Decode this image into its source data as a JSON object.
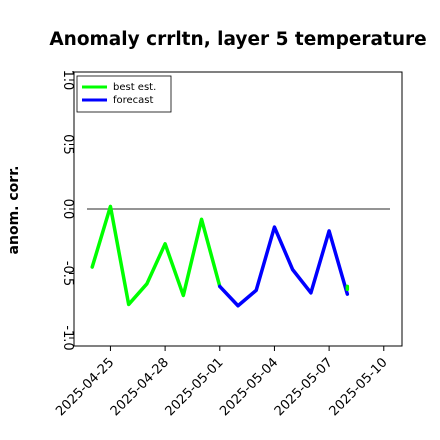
{
  "chart_data": {
    "type": "line",
    "title": "Anomaly crrltn, layer 5 temperature",
    "ylabel": "anom. corr.",
    "xlabel": "",
    "ylim": [
      -1.05,
      1.05
    ],
    "yticks": [
      -1.0,
      -0.5,
      0.0,
      0.5,
      1.0
    ],
    "ytick_labels": [
      "-1.0",
      "-0.5",
      "0.0",
      "0.5",
      "1.0"
    ],
    "xlim": [
      "2025-04-23T00:00",
      "2025-05-11T00:00"
    ],
    "xticks": [
      "2025-04-25",
      "2025-04-28",
      "2025-05-01",
      "2025-05-04",
      "2025-05-07",
      "2025-05-10"
    ],
    "xtick_labels": [
      "2025-04-25",
      "2025-04-28",
      "2025-05-01",
      "2025-05-04",
      "2025-05-07",
      "2025-05-10"
    ],
    "highlighted_xtick": "2025-05-01",
    "highlight_color": "#1a8a1a",
    "reference_line_y": 0.0,
    "legend_position": "upper-left",
    "grid": false,
    "series": [
      {
        "name": "best est.",
        "color": "#00ff00",
        "x": [
          "2025-04-24",
          "2025-04-25",
          "2025-04-26",
          "2025-04-27",
          "2025-04-28",
          "2025-04-29",
          "2025-04-30",
          "2025-05-01"
        ],
        "y": [
          -0.45,
          0.02,
          -0.74,
          -0.58,
          -0.27,
          -0.67,
          -0.08,
          -0.6
        ]
      },
      {
        "name": "forecast",
        "color": "#0000ff",
        "x": [
          "2025-05-01",
          "2025-05-02",
          "2025-05-03",
          "2025-05-04",
          "2025-05-05",
          "2025-05-06",
          "2025-05-07",
          "2025-05-08"
        ],
        "y": [
          -0.6,
          -0.75,
          -0.63,
          -0.14,
          -0.47,
          -0.65,
          -0.17,
          -0.66
        ]
      },
      {
        "name": "",
        "color": "#00ff00",
        "x": [
          "2025-05-08"
        ],
        "y": [
          -0.6
        ]
      }
    ]
  }
}
